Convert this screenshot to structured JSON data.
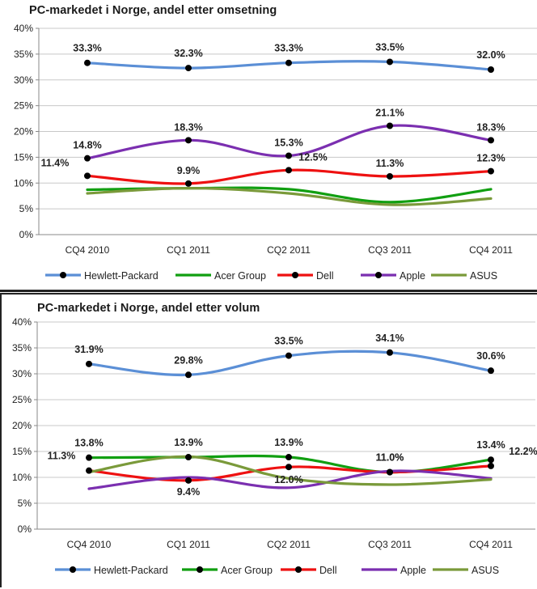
{
  "chart_data": [
    {
      "type": "line",
      "title": "PC-markedet i Norge, andel etter omsetning",
      "categories": [
        "CQ4 2010",
        "CQ1 2011",
        "CQ2 2011",
        "CQ3 2011",
        "CQ4 2011"
      ],
      "ylim": [
        0,
        40
      ],
      "yticks": [
        "0%",
        "5%",
        "10%",
        "15%",
        "20%",
        "25%",
        "30%",
        "35%",
        "40%"
      ],
      "grid": true,
      "legend_position": "bottom",
      "series": [
        {
          "name": "Hewlett-Packard",
          "color": "#5b8fd6",
          "marker": true,
          "values": [
            33.3,
            32.3,
            33.3,
            33.5,
            32.0
          ],
          "labels": [
            "33.3%",
            "32.3%",
            "33.3%",
            "33.5%",
            "32.0%"
          ]
        },
        {
          "name": "Acer Group",
          "color": "#119f11",
          "marker": false,
          "values": [
            8.7,
            9.0,
            8.8,
            6.3,
            8.8
          ],
          "labels": []
        },
        {
          "name": "Dell",
          "color": "#ee1111",
          "marker": true,
          "values": [
            11.4,
            9.9,
            12.5,
            11.3,
            12.3
          ],
          "labels": [
            "11.4%",
            "9.9%",
            "12.5%",
            "11.3%",
            "12.3%"
          ]
        },
        {
          "name": "Apple",
          "color": "#7b2fb0",
          "marker": true,
          "values": [
            14.8,
            18.3,
            15.3,
            21.1,
            18.3
          ],
          "labels": [
            "14.8%",
            "18.3%",
            "15.3%",
            "21.1%",
            "18.3%"
          ]
        },
        {
          "name": "ASUS",
          "color": "#7a9a3a",
          "marker": false,
          "values": [
            8.0,
            9.0,
            8.0,
            5.8,
            7.0
          ],
          "labels": []
        }
      ]
    },
    {
      "type": "line",
      "title": "PC-markedet i Norge, andel etter volum",
      "categories": [
        "CQ4 2010",
        "CQ1 2011",
        "CQ2 2011",
        "CQ3 2011",
        "CQ4 2011"
      ],
      "ylim": [
        0,
        40
      ],
      "yticks": [
        "0%",
        "5%",
        "10%",
        "15%",
        "20%",
        "25%",
        "30%",
        "35%",
        "40%"
      ],
      "grid": true,
      "legend_position": "bottom",
      "series": [
        {
          "name": "Hewlett-Packard",
          "color": "#5b8fd6",
          "marker": true,
          "values": [
            31.9,
            29.8,
            33.5,
            34.1,
            30.6
          ],
          "labels": [
            "31.9%",
            "29.8%",
            "33.5%",
            "34.1%",
            "30.6%"
          ]
        },
        {
          "name": "Acer Group",
          "color": "#119f11",
          "marker": true,
          "values": [
            13.8,
            13.9,
            13.9,
            11.0,
            13.4
          ],
          "labels": [
            "13.8%",
            "13.9%",
            "13.9%",
            "11.0%",
            "13.4%"
          ]
        },
        {
          "name": "Dell",
          "color": "#ee1111",
          "marker": true,
          "values": [
            11.3,
            9.4,
            12.0,
            11.0,
            12.2
          ],
          "labels": [
            "11.3%",
            "9.4%",
            "12.0%",
            "11.0%",
            "12.2%"
          ]
        },
        {
          "name": "Apple",
          "color": "#7b2fb0",
          "marker": false,
          "values": [
            7.8,
            10.0,
            8.0,
            11.2,
            9.8
          ],
          "labels": []
        },
        {
          "name": "ASUS",
          "color": "#7a9a3a",
          "marker": false,
          "values": [
            11.0,
            14.0,
            9.8,
            8.6,
            9.6
          ],
          "labels": []
        }
      ]
    }
  ]
}
